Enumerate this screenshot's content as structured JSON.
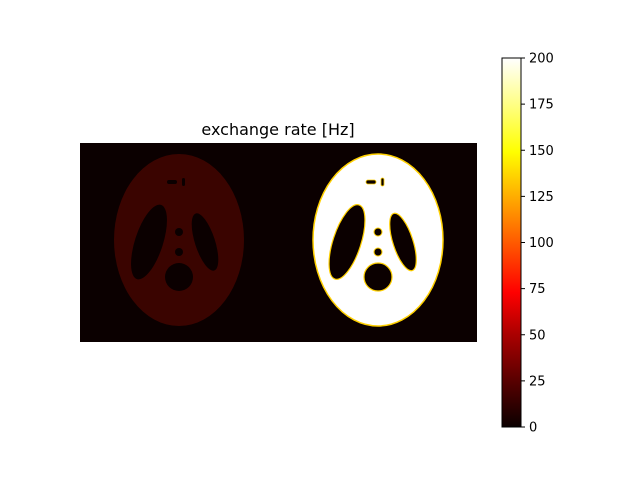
{
  "chart_data": {
    "type": "heatmap",
    "title": "exchange rate [Hz]",
    "xlabel": "",
    "ylabel": "",
    "axes_visible": false,
    "colormap": "hot",
    "colorbar": {
      "vmin": 0,
      "vmax": 200,
      "ticks": [
        0,
        25,
        50,
        75,
        100,
        125,
        150,
        175,
        200
      ],
      "tick_labels": [
        "0",
        "25",
        "50",
        "75",
        "100",
        "125",
        "150",
        "175",
        "200"
      ]
    },
    "panels": [
      {
        "name": "left",
        "background_value": 0,
        "phantom_value": 20,
        "hole_value": 0
      },
      {
        "name": "right",
        "background_value": 0,
        "phantom_value": 200,
        "hole_value": 0
      }
    ]
  }
}
